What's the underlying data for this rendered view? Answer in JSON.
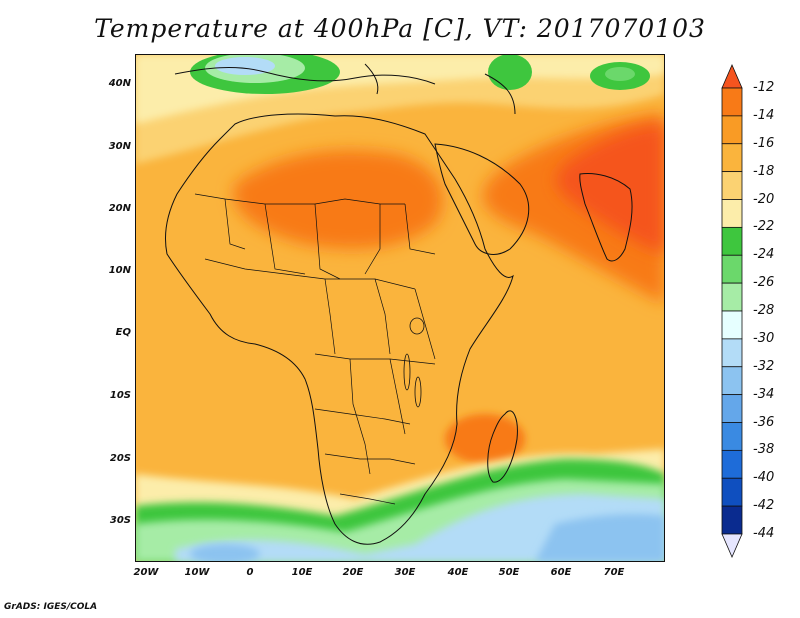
{
  "title": "Temperature at 400hPa [C], VT: 2017070103",
  "credit": "GrADS: IGES/COLA",
  "lat_labels": [
    "40N",
    "30N",
    "20N",
    "10N",
    "EQ",
    "10S",
    "20S",
    "30S"
  ],
  "lon_labels": [
    "20W",
    "10W",
    "0",
    "10E",
    "20E",
    "30E",
    "40E",
    "50E",
    "60E",
    "70E"
  ],
  "colorbar": {
    "labels": [
      "-12",
      "-14",
      "-16",
      "-18",
      "-20",
      "-22",
      "-24",
      "-26",
      "-28",
      "-30",
      "-32",
      "-34",
      "-36",
      "-38",
      "-40",
      "-42",
      "-44"
    ],
    "colors": [
      "#f5541f",
      "#f87a17",
      "#f99b25",
      "#fab43d",
      "#fbd272",
      "#fcedaa",
      "#3ec63e",
      "#6bd86b",
      "#a6eca6",
      "#e6ffff",
      "#b3dcf7",
      "#8cc3f0",
      "#64a7ea",
      "#3a8ae2",
      "#1e6cd9",
      "#0f4fbf",
      "#0a2b8f",
      "#06156b"
    ]
  }
}
